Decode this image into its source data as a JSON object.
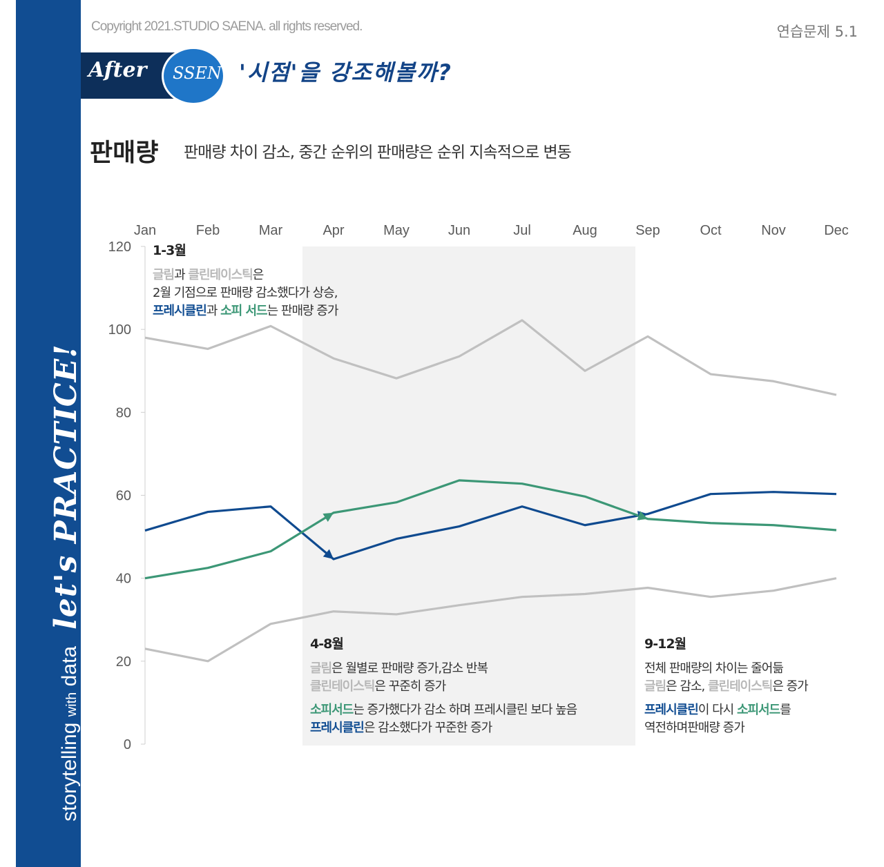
{
  "header": {
    "copyright": "Copyright 2021.STUDIO SAENA. all rights reserved.",
    "practice_label": "연습문제 5.1",
    "after_label": "After",
    "ssen_label": "SSEN",
    "headline": "'시점'을 강조해볼까?",
    "title": "판매량",
    "subtitle": "판매량 차이 감소, 중간 순위의 판매량은 순위 지속적으로 변동"
  },
  "sidebar": {
    "part1": "storytelling ",
    "part2": "with",
    "part3": " data",
    "part4": "let's PRACTICE!"
  },
  "colors": {
    "sidebar": "#114d92",
    "gray_line": "#c0c0c0",
    "blue_line": "#0f4a8f",
    "green_line": "#3c9776",
    "highlight": "#f2f2f2"
  },
  "annotations": {
    "a1": {
      "heading": "1-3월",
      "l1_a": "글림",
      "l1_b": "과 ",
      "l1_c": "클린테이스틱",
      "l1_d": "은",
      "l2": "2월 기점으로 판매량 감소했다가 상승,",
      "l3_a": "프레시클린",
      "l3_b": "과 ",
      "l3_c": "소피 서드",
      "l3_d": "는 판매량 증가"
    },
    "a2": {
      "heading": "4-8월",
      "l1_a": "글림",
      "l1_b": "은 월별로 판매량 증가,감소 반복",
      "l2_a": "클린테이스틱",
      "l2_b": "은 꾸준히 증가",
      "l3_a": "소피서드",
      "l3_b": "는 증가했다가 감소 하며 프레시클린 보다 높음",
      "l4_a": "프레시클린",
      "l4_b": "은 감소했다가 꾸준한 증가"
    },
    "a3": {
      "heading": "9-12월",
      "l1": "전체 판매량의 차이는 줄어듦",
      "l2_a": "글림",
      "l2_b": "은 감소, ",
      "l2_c": "클린테이스틱",
      "l2_d": "은 증가",
      "l3_a": "프레시클린",
      "l3_b": "이 다시 ",
      "l3_c": "소피서드",
      "l3_d": "를",
      "l4": "역전하며판매량 증가"
    }
  },
  "chart_data": {
    "type": "line",
    "categories": [
      "Jan",
      "Feb",
      "Mar",
      "Apr",
      "May",
      "Jun",
      "Jul",
      "Aug",
      "Sep",
      "Oct",
      "Nov",
      "Dec"
    ],
    "y_ticks": [
      "0",
      "20",
      "40",
      "60",
      "80",
      "100",
      "120"
    ],
    "ylim": [
      0,
      120
    ],
    "x_axis_position": "top",
    "highlight_range": [
      "Apr",
      "Aug"
    ],
    "series": [
      {
        "color": "#c0c0c0",
        "values": [
          98,
          95.3,
          100.8,
          93,
          88.2,
          93.5,
          102.2,
          90,
          98.3,
          89.2,
          87.5,
          84.2
        ]
      },
      {
        "color": "#c0c0c0",
        "values": [
          23,
          20,
          29,
          32,
          31.3,
          33.5,
          35.5,
          36.2,
          37.7,
          35.5,
          37,
          40
        ]
      },
      {
        "color": "#0f4a8f",
        "values": [
          51.5,
          56,
          57.3,
          44.6,
          49.5,
          52.5,
          57.3,
          52.8,
          55.5,
          60.3,
          60.8,
          60.3
        ]
      },
      {
        "color": "#3c9776",
        "values": [
          40,
          42.5,
          46.5,
          55.8,
          58.3,
          63.6,
          62.8,
          59.7,
          54.3,
          53.3,
          52.8,
          51.6
        ]
      }
    ]
  }
}
